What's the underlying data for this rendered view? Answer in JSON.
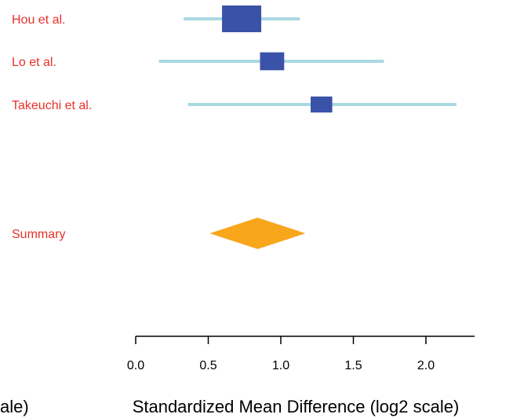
{
  "chart_data": {
    "type": "forest",
    "x_scale_note": "log2 scale",
    "xlabel": "Standardized Mean Difference (log2 scale)",
    "xlabel_fragment_left": "ale)",
    "xlim": [
      0.0,
      2.3
    ],
    "ticks": [
      {
        "value": 0.0,
        "label": "0.0"
      },
      {
        "value": 0.5,
        "label": "0.5"
      },
      {
        "value": 1.0,
        "label": "1.0"
      },
      {
        "value": 1.5,
        "label": "1.5"
      },
      {
        "value": 2.0,
        "label": "2.0"
      }
    ],
    "studies": [
      {
        "label": "Hou et al.",
        "estimate": 0.73,
        "ci_low": 0.33,
        "ci_high": 1.13,
        "weight": 1.0
      },
      {
        "label": "Lo et al.",
        "estimate": 0.94,
        "ci_low": 0.16,
        "ci_high": 1.71,
        "weight": 0.45
      },
      {
        "label": "Takeuchi et al.",
        "estimate": 1.28,
        "ci_low": 0.36,
        "ci_high": 2.21,
        "weight": 0.36
      }
    ],
    "summary": {
      "label": "Summary",
      "estimate": 0.84,
      "ci_low": 0.51,
      "ci_high": 1.17
    },
    "colors": {
      "label": "#e8302a",
      "ci_line": "#a9d8e3",
      "box": "#3a53a8",
      "summary": "#f8a61c",
      "axis": "#000000"
    }
  }
}
